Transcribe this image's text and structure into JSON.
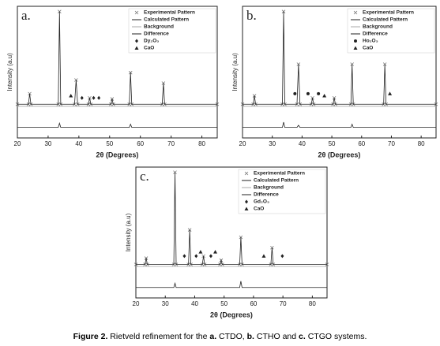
{
  "chart_data": [
    {
      "type": "line",
      "label": "a.",
      "xlabel": "2θ (Degrees)",
      "ylabel": "Intensity (a.u)",
      "xlim": [
        20,
        85
      ],
      "xticks": [
        20,
        30,
        40,
        50,
        60,
        70,
        80
      ],
      "ylim": [
        -20,
        105
      ],
      "x": [
        20,
        23.6,
        24,
        24.4,
        33.3,
        33.7,
        34.1,
        38.6,
        39.1,
        39.6,
        43.1,
        43.5,
        43.9,
        50.4,
        50.8,
        51.2,
        56.4,
        56.8,
        57.2,
        67.1,
        67.5,
        67.9,
        85
      ],
      "series": [
        {
          "name": "Experimental Pattern",
          "color": "#777777",
          "style": "marker",
          "values": [
            12,
            12,
            22,
            12,
            12,
            100,
            12,
            12,
            35,
            12,
            12,
            18,
            12,
            12,
            17,
            12,
            12,
            42,
            12,
            12,
            32,
            12,
            12
          ]
        },
        {
          "name": "Calculated Pattern",
          "color": "#222222",
          "style": "line",
          "values": [
            12,
            12,
            22,
            12,
            12,
            100,
            12,
            12,
            35,
            12,
            12,
            18,
            12,
            12,
            17,
            12,
            12,
            42,
            12,
            12,
            32,
            12,
            12
          ]
        },
        {
          "name": "Background",
          "color": "#aaaaaa",
          "style": "line",
          "values": [
            10,
            10,
            10,
            10,
            10,
            10,
            10,
            10,
            10,
            10,
            10,
            10,
            10,
            10,
            10,
            10,
            10,
            10,
            10,
            10,
            10,
            10,
            10
          ]
        },
        {
          "name": "Difference",
          "color": "#222222",
          "style": "line",
          "values": [
            -10,
            -10,
            -10,
            -10,
            -10,
            -6,
            -10,
            -10,
            -10,
            -10,
            -10,
            -10,
            -10,
            -10,
            -10,
            -10,
            -10,
            -7,
            -10,
            -10,
            -10,
            -10,
            -10
          ]
        }
      ],
      "phases": [
        {
          "name": "Dy₂O₃",
          "marker": "diamond",
          "x": [
            41,
            44.8,
            46.5
          ],
          "y": [
            18,
            18,
            18
          ]
        },
        {
          "name": "CaO",
          "marker": "triangle",
          "x": [
            37.4
          ],
          "y": [
            20
          ]
        }
      ]
    },
    {
      "type": "line",
      "label": "b.",
      "xlabel": "2θ (Degrees)",
      "ylabel": "Intensity (a.u)",
      "xlim": [
        20,
        85
      ],
      "xticks": [
        20,
        30,
        40,
        50,
        60,
        70,
        80
      ],
      "ylim": [
        -20,
        105
      ],
      "x": [
        20,
        23.6,
        24,
        24.4,
        33.4,
        33.8,
        34.2,
        38.3,
        38.8,
        39.3,
        43.1,
        43.5,
        43.9,
        50.4,
        50.8,
        51.2,
        56.4,
        56.8,
        57.2,
        67.4,
        67.8,
        68.2,
        85
      ],
      "series": [
        {
          "name": "Experimental Pattern",
          "color": "#777777",
          "style": "marker",
          "values": [
            12,
            12,
            20,
            12,
            12,
            100,
            12,
            12,
            50,
            12,
            12,
            18,
            12,
            12,
            18,
            12,
            12,
            50,
            12,
            12,
            50,
            12,
            12
          ]
        },
        {
          "name": "Calculated Pattern",
          "color": "#222222",
          "style": "line",
          "values": [
            12,
            12,
            20,
            12,
            12,
            100,
            12,
            12,
            50,
            12,
            12,
            18,
            12,
            12,
            18,
            12,
            12,
            50,
            12,
            12,
            50,
            12,
            12
          ]
        },
        {
          "name": "Background",
          "color": "#aaaaaa",
          "style": "line",
          "values": [
            10,
            10,
            10,
            10,
            10,
            10,
            10,
            10,
            10,
            10,
            10,
            10,
            10,
            10,
            10,
            10,
            10,
            10,
            10,
            10,
            10,
            10,
            10
          ]
        },
        {
          "name": "Difference",
          "color": "#222222",
          "style": "line",
          "values": [
            -10,
            -10,
            -10,
            -10,
            -10,
            -5,
            -10,
            -10,
            -8,
            -10,
            -10,
            -10,
            -10,
            -10,
            -10,
            -10,
            -10,
            -7,
            -10,
            -10,
            -10,
            -10,
            -10
          ]
        }
      ],
      "phases": [
        {
          "name": "Ho₂O₃",
          "marker": "circle",
          "x": [
            37.6,
            42,
            45.5
          ],
          "y": [
            22,
            22,
            22
          ]
        },
        {
          "name": "CaO",
          "marker": "triangle",
          "x": [
            47.5,
            69.5
          ],
          "y": [
            20,
            22
          ]
        }
      ]
    },
    {
      "type": "line",
      "label": "c.",
      "xlabel": "2θ (Degrees)",
      "ylabel": "Intensity (a.u)",
      "xlim": [
        20,
        85
      ],
      "xticks": [
        20,
        30,
        40,
        50,
        60,
        70,
        80
      ],
      "ylim": [
        -20,
        105
      ],
      "x": [
        20,
        23.1,
        23.5,
        23.9,
        32.9,
        33.3,
        33.7,
        37.9,
        38.3,
        38.7,
        42.6,
        43,
        43.4,
        48.6,
        49,
        49.4,
        55.3,
        55.7,
        56.1,
        65.9,
        66.3,
        66.7,
        85
      ],
      "series": [
        {
          "name": "Experimental Pattern",
          "color": "#777777",
          "style": "marker",
          "values": [
            12,
            12,
            18,
            12,
            12,
            100,
            12,
            12,
            45,
            12,
            12,
            20,
            12,
            12,
            16,
            12,
            12,
            38,
            12,
            12,
            28,
            12,
            12
          ]
        },
        {
          "name": "Calculated Pattern",
          "color": "#222222",
          "style": "line",
          "values": [
            12,
            12,
            18,
            12,
            12,
            100,
            12,
            12,
            45,
            12,
            12,
            20,
            12,
            12,
            16,
            12,
            12,
            38,
            12,
            12,
            28,
            12,
            12
          ]
        },
        {
          "name": "Background",
          "color": "#aaaaaa",
          "style": "line",
          "values": [
            10,
            10,
            10,
            10,
            10,
            10,
            10,
            10,
            10,
            10,
            10,
            10,
            10,
            10,
            10,
            10,
            10,
            10,
            10,
            10,
            10,
            10,
            10
          ]
        },
        {
          "name": "Difference",
          "color": "#222222",
          "style": "line",
          "values": [
            -10,
            -10,
            -10,
            -10,
            -10,
            -6,
            -10,
            -10,
            -10,
            -10,
            -10,
            -10,
            -10,
            -10,
            -10,
            -10,
            -10,
            -4,
            -10,
            -10,
            -10,
            -10,
            -10
          ]
        }
      ],
      "phases": [
        {
          "name": "Gd₂O₃",
          "marker": "diamond",
          "x": [
            36.5,
            40.5,
            45.5,
            69.8
          ],
          "y": [
            20,
            20,
            20,
            20
          ]
        },
        {
          "name": "CaO",
          "marker": "triangle",
          "x": [
            42,
            47,
            63.5
          ],
          "y": [
            24,
            24,
            20
          ]
        }
      ]
    }
  ],
  "caption": [
    "Figure 2.",
    " Rietveld refinement for the ",
    "a.",
    " CTDO, ",
    "b.",
    " CTHO and ",
    "c.",
    " CTGO systems."
  ]
}
